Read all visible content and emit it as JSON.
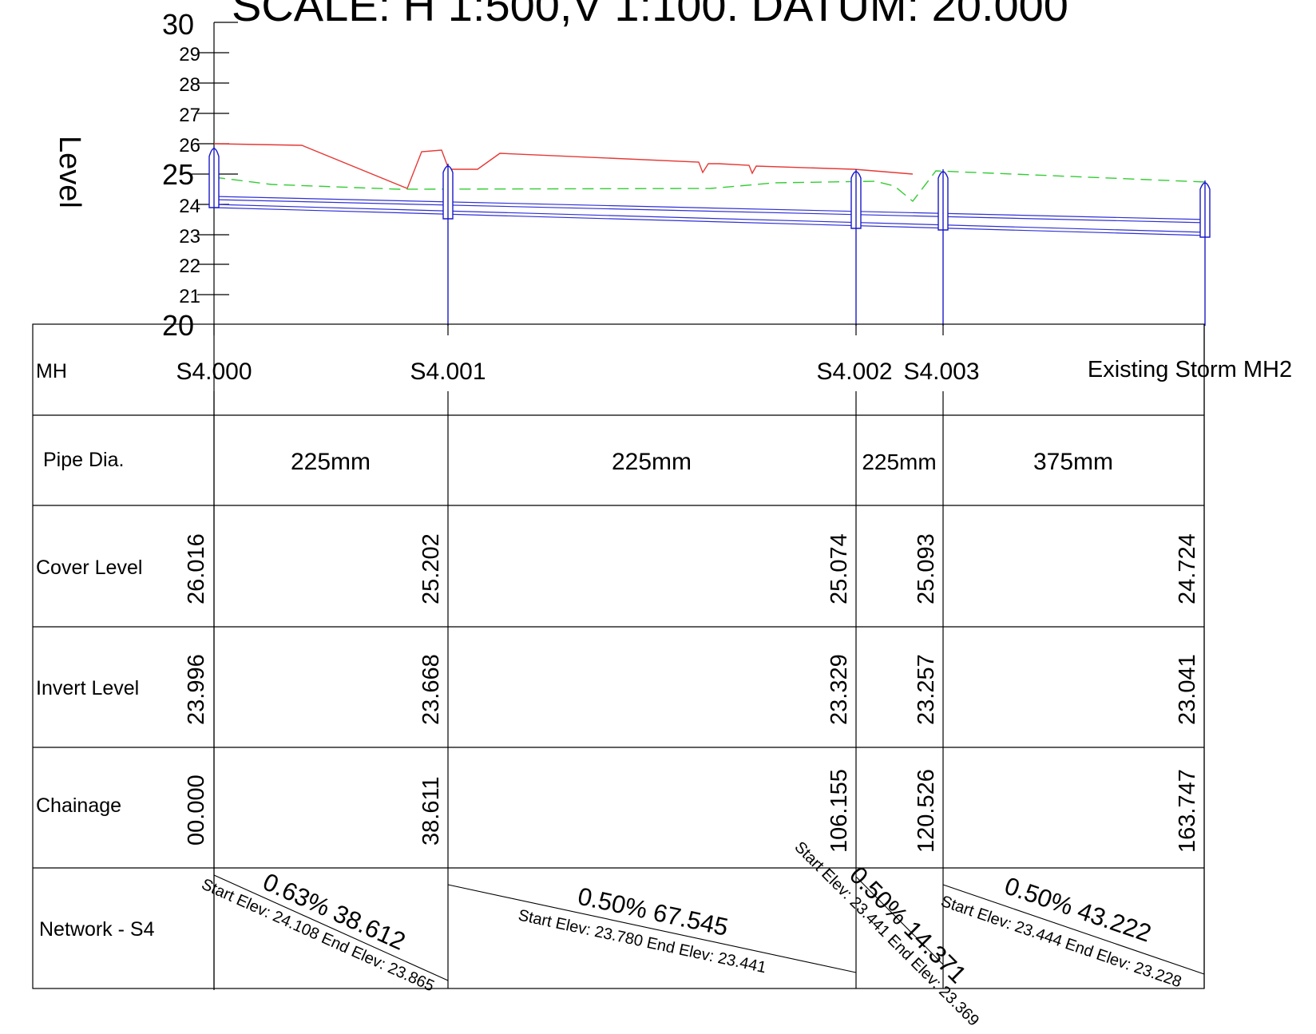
{
  "title": "SCALE: H 1:500,V 1:100. DATUM: 20.000",
  "axis": {
    "label": "Level",
    "ticks": [
      "30",
      "29",
      "28",
      "27",
      "26",
      "25",
      "24",
      "23",
      "22",
      "21",
      "20"
    ],
    "range": [
      20,
      30
    ]
  },
  "rows": {
    "mh": "MH",
    "pipe_dia": "Pipe Dia.",
    "cover": "Cover Level",
    "invert": "Invert Level",
    "chainage": "Chainage",
    "network": "Network - S4"
  },
  "manholes": [
    {
      "name": "S4.000",
      "cover": "26.016",
      "invert": "23.996",
      "chainage": "00.000"
    },
    {
      "name": "S4.001",
      "cover": "25.202",
      "invert": "23.668",
      "chainage": "38.611"
    },
    {
      "name": "S4.002",
      "cover": "25.074",
      "invert": "23.329",
      "chainage": "106.155"
    },
    {
      "name": "S4.003",
      "cover": "25.093",
      "invert": "23.257",
      "chainage": "120.526"
    },
    {
      "name": "Existing Storm MH2",
      "cover": "24.724",
      "invert": "23.041",
      "chainage": "163.747"
    }
  ],
  "pipes": [
    {
      "dia": "225mm",
      "grade": "0.63% 38.612",
      "elev": "Start Elev: 24.108 End Elev: 23.865"
    },
    {
      "dia": "225mm",
      "grade": "0.50% 67.545",
      "elev": "Start Elev: 23.780 End Elev: 23.441"
    },
    {
      "dia": "225mm",
      "grade": "0.50% 14.371",
      "elev": "Start Elev: 23.441 End Elev: 23.369"
    },
    {
      "dia": "375mm",
      "grade": "0.50% 43.222",
      "elev": "Start Elev: 23.444 End Elev: 23.228"
    }
  ],
  "colors": {
    "existing_ground": "#e53935",
    "proposed_ground": "#33cc33",
    "pipe": "#2f2fd8",
    "manhole": "#1a1ac8",
    "grid": "#000000"
  }
}
